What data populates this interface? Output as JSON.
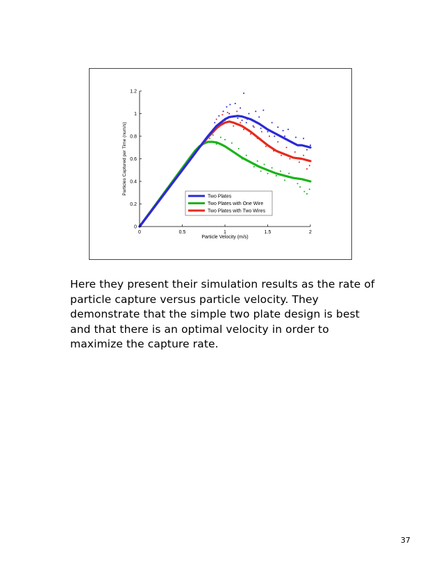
{
  "caption": "Here they present their simulation results as the rate of particle capture versus particle velocity. They demonstrate that the simple two plate design is best and that there is an optimal velocity in order to maximize the capture rate.",
  "page_number": "37",
  "chart_data": {
    "type": "line",
    "title": "",
    "xlabel": "Particle Velocity (m/s)",
    "ylabel": "Particles Captured per Time (num/s)",
    "xlim": [
      0,
      2
    ],
    "ylim": [
      0,
      1.2
    ],
    "xticks": [
      0,
      0.5,
      1,
      1.5,
      2
    ],
    "xtick_labels": [
      "0",
      "0.5",
      "1",
      "1.5",
      "2"
    ],
    "yticks": [
      0,
      0.2,
      0.4,
      0.6,
      0.8,
      1,
      1.2
    ],
    "ytick_labels": [
      "0",
      "0.2",
      "0.4",
      "0.6",
      "0.8",
      "1",
      "1.2"
    ],
    "legend_position": "lower-right",
    "series": [
      {
        "name": "Two Plates",
        "color": "#2a2ad8",
        "x": [
          0,
          0.6,
          0.7,
          0.8,
          0.9,
          1.0,
          1.05,
          1.1,
          1.15,
          1.2,
          1.3,
          1.4,
          1.5,
          1.6,
          1.7,
          1.8,
          1.85,
          1.9,
          2.0
        ],
        "y": [
          0,
          0.6,
          0.7,
          0.8,
          0.89,
          0.95,
          0.97,
          0.975,
          0.98,
          0.975,
          0.95,
          0.91,
          0.86,
          0.82,
          0.78,
          0.74,
          0.72,
          0.72,
          0.7
        ],
        "scatter_x": [
          0.88,
          0.9,
          0.93,
          0.95,
          0.98,
          1.0,
          1.02,
          1.05,
          1.06,
          1.09,
          1.12,
          1.15,
          1.18,
          1.2,
          1.22,
          1.25,
          1.28,
          1.3,
          1.33,
          1.36,
          1.4,
          1.42,
          1.45,
          1.5,
          1.55,
          1.58,
          1.62,
          1.68,
          1.7,
          1.74,
          1.79,
          1.83,
          1.88,
          1.92,
          1.96,
          2.0
        ],
        "scatter_y": [
          0.92,
          0.87,
          0.98,
          0.9,
          1.02,
          0.95,
          1.06,
          1.0,
          1.08,
          0.97,
          1.09,
          0.96,
          1.05,
          0.94,
          1.18,
          0.92,
          1.0,
          0.95,
          0.89,
          1.02,
          0.97,
          0.87,
          1.03,
          0.84,
          0.92,
          0.8,
          0.88,
          0.85,
          0.8,
          0.86,
          0.74,
          0.79,
          0.72,
          0.78,
          0.68,
          0.72
        ]
      },
      {
        "name": "Two Plates with One Wire",
        "color": "#1ab41a",
        "x": [
          0,
          0.55,
          0.6,
          0.65,
          0.7,
          0.75,
          0.8,
          0.85,
          0.9,
          0.95,
          1.0,
          1.1,
          1.2,
          1.3,
          1.4,
          1.5,
          1.6,
          1.7,
          1.8,
          1.9,
          2.0
        ],
        "y": [
          0,
          0.57,
          0.62,
          0.67,
          0.71,
          0.735,
          0.75,
          0.75,
          0.745,
          0.73,
          0.71,
          0.66,
          0.61,
          0.57,
          0.53,
          0.5,
          0.47,
          0.45,
          0.43,
          0.42,
          0.4
        ],
        "scatter_x": [
          0.82,
          0.86,
          0.9,
          0.95,
          1.0,
          1.04,
          1.08,
          1.12,
          1.16,
          1.2,
          1.25,
          1.3,
          1.34,
          1.38,
          1.42,
          1.46,
          1.5,
          1.55,
          1.6,
          1.65,
          1.7,
          1.75,
          1.8,
          1.85,
          1.88,
          1.93,
          1.96,
          1.99
        ],
        "scatter_y": [
          0.78,
          0.81,
          0.73,
          0.79,
          0.77,
          0.69,
          0.74,
          0.65,
          0.69,
          0.6,
          0.63,
          0.57,
          0.53,
          0.58,
          0.49,
          0.55,
          0.47,
          0.52,
          0.45,
          0.49,
          0.41,
          0.47,
          0.43,
          0.38,
          0.35,
          0.31,
          0.29,
          0.33
        ]
      },
      {
        "name": "Two Plates with Two Wires",
        "color": "#e62a1e",
        "x": [
          0,
          0.6,
          0.7,
          0.8,
          0.85,
          0.9,
          0.95,
          1.0,
          1.05,
          1.1,
          1.2,
          1.3,
          1.4,
          1.5,
          1.6,
          1.7,
          1.8,
          1.9,
          2.0
        ],
        "y": [
          0,
          0.6,
          0.7,
          0.79,
          0.83,
          0.87,
          0.9,
          0.92,
          0.93,
          0.92,
          0.89,
          0.84,
          0.78,
          0.72,
          0.67,
          0.64,
          0.61,
          0.6,
          0.58
        ],
        "scatter_x": [
          0.86,
          0.9,
          0.94,
          0.97,
          1.0,
          1.03,
          1.07,
          1.1,
          1.14,
          1.18,
          1.22,
          1.26,
          1.3,
          1.34,
          1.38,
          1.43,
          1.48,
          1.52,
          1.57,
          1.62,
          1.66,
          1.72,
          1.76,
          1.82,
          1.87,
          1.92,
          1.96,
          1.99
        ],
        "scatter_y": [
          0.86,
          0.95,
          0.9,
          0.99,
          0.94,
          1.01,
          0.97,
          0.89,
          1.02,
          0.92,
          0.86,
          0.95,
          0.82,
          0.88,
          0.78,
          0.84,
          0.71,
          0.8,
          0.67,
          0.75,
          0.63,
          0.7,
          0.6,
          0.66,
          0.57,
          0.63,
          0.51,
          0.54
        ]
      }
    ]
  }
}
